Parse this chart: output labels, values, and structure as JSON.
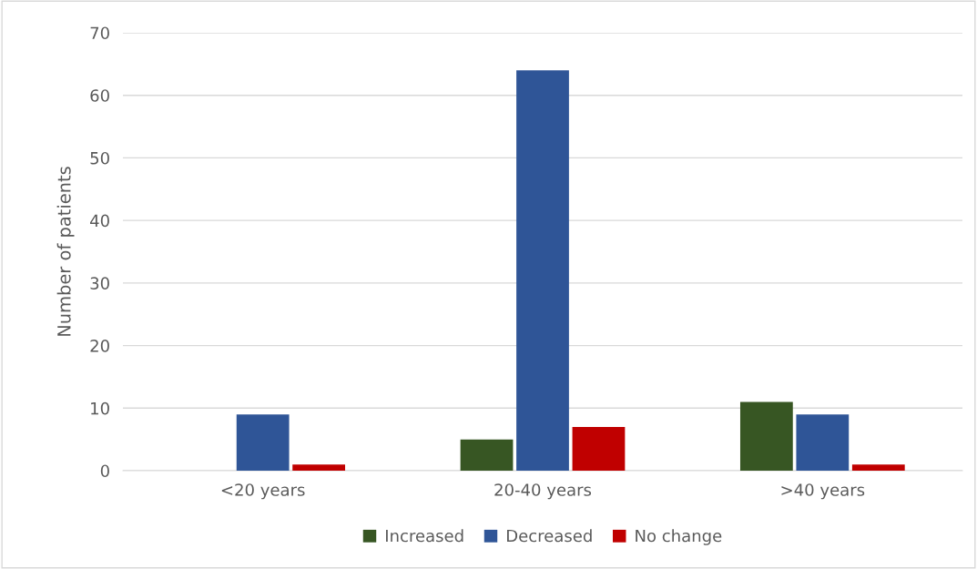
{
  "chart_data": {
    "type": "bar",
    "ylabel": "Number of patients",
    "categories": [
      "<20 years",
      "20-40 years",
      ">40 years"
    ],
    "series": [
      {
        "name": "Increased",
        "color": "#375623",
        "values": [
          0,
          5,
          11
        ]
      },
      {
        "name": "Decreased",
        "color": "#2f5597",
        "values": [
          9,
          64,
          9
        ]
      },
      {
        "name": "No change",
        "color": "#c00000",
        "values": [
          1,
          7,
          1
        ]
      }
    ],
    "ylim": [
      0,
      70
    ],
    "yticks": [
      0,
      10,
      20,
      30,
      40,
      50,
      60,
      70
    ],
    "grid": "y",
    "legend": "bottom"
  }
}
